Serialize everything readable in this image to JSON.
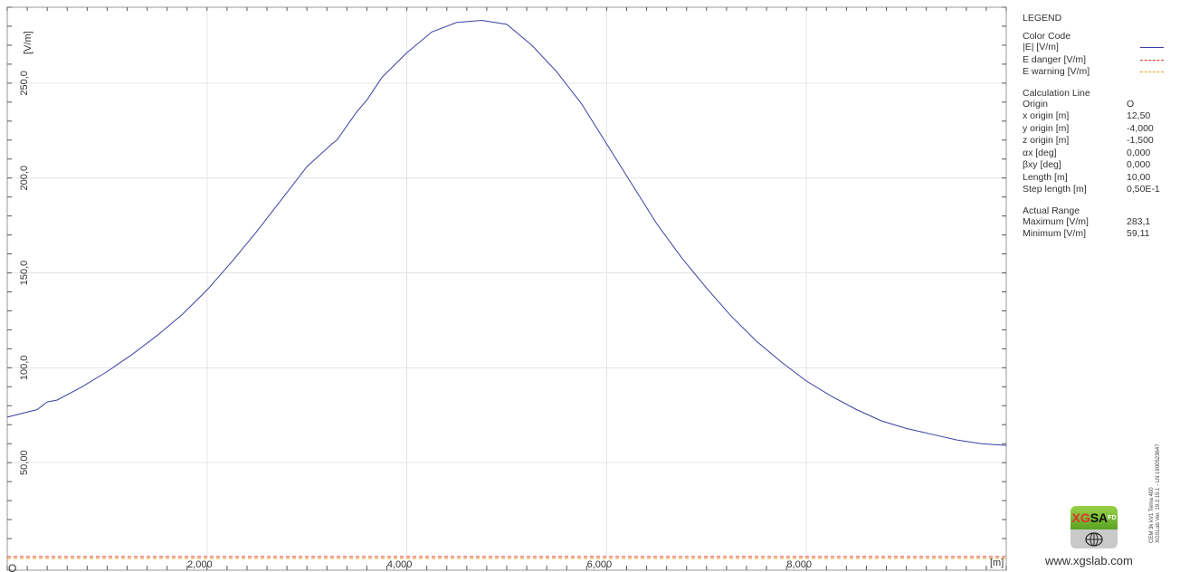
{
  "chart_data": {
    "type": "line",
    "ylabel": "[V/m]",
    "xlabel": "[m]",
    "xlim": [
      0,
      10.0
    ],
    "ylim": [
      0,
      290
    ],
    "x_ticks": [
      "2,000",
      "4,000",
      "6,000",
      "8,000"
    ],
    "x_tick_values": [
      2,
      4,
      6,
      8
    ],
    "y_ticks": [
      "50,00",
      "100,0",
      "150,0",
      "200,0",
      "250,0"
    ],
    "y_tick_values": [
      50,
      100,
      150,
      200,
      250
    ],
    "origin_marker": "O",
    "grid": true,
    "series": [
      {
        "name": "|E| [V/m]",
        "color": "#3b3fa0",
        "x": [
          0,
          0.3,
          0.4,
          0.5,
          0.75,
          1,
          1.25,
          1.5,
          1.75,
          2,
          2.25,
          2.5,
          2.75,
          3,
          3.25,
          3.3,
          3.5,
          3.6,
          3.75,
          4,
          4.25,
          4.5,
          4.75,
          5,
          5.25,
          5.5,
          5.75,
          6,
          6.25,
          6.5,
          6.75,
          7,
          7.25,
          7.5,
          7.75,
          8,
          8.25,
          8.5,
          8.75,
          9,
          9.25,
          9.5,
          9.75,
          10
        ],
        "y": [
          74,
          78,
          82,
          83,
          90,
          98,
          107,
          117,
          128,
          141,
          156,
          172,
          189,
          206,
          218,
          220,
          235,
          241,
          253,
          266,
          277,
          282,
          283.1,
          281,
          270,
          256,
          239,
          218,
          197,
          176,
          158,
          142,
          127,
          114,
          103,
          93,
          85,
          78,
          72,
          68,
          65,
          62,
          60,
          59.11
        ]
      },
      {
        "name": "E danger [V/m]",
        "color": "#e8302e",
        "constant": 0
      },
      {
        "name": "E warning [V/m]",
        "color": "#e8a020",
        "constant": 0
      }
    ]
  },
  "legend": {
    "title": "LEGEND",
    "color_code_title": "Color Code",
    "items": [
      {
        "label": "|E| [V/m]",
        "color": "#3b3fa0",
        "style": "solid"
      },
      {
        "label": "E danger [V/m]",
        "color": "#e8302e",
        "style": "dashed"
      },
      {
        "label": "E warning [V/m]",
        "color": "#e8a020",
        "style": "dashed"
      }
    ],
    "calc_title": "Calculation Line",
    "calc_rows": [
      {
        "label": "Origin",
        "value": "O"
      },
      {
        "label": "x origin [m]",
        "value": "12,50"
      },
      {
        "label": "y origin [m]",
        "value": "-4,000"
      },
      {
        "label": "z origin [m]",
        "value": "-1,500"
      },
      {
        "label": "αx [deg]",
        "value": "0,000"
      },
      {
        "label": "βxy [deg]",
        "value": "0,000"
      },
      {
        "label": "Length [m]",
        "value": "10,00"
      },
      {
        "label": "Step length [m]",
        "value": "0,50E-1"
      }
    ],
    "range_title": "Actual Range",
    "range_rows": [
      {
        "label": "Maximum [V/m]",
        "value": "283,1"
      },
      {
        "label": "Minimum [V/m]",
        "value": "59,11"
      }
    ]
  },
  "logo": {
    "text_red": "XG",
    "text_black": "SA",
    "text_small": "FD"
  },
  "website": "www.xgslab.com",
  "version_lines": [
    "CEM 3k kV1 Terna 400",
    "XGSLab Ver. 19.2.15.1 - LN 190052364?"
  ]
}
